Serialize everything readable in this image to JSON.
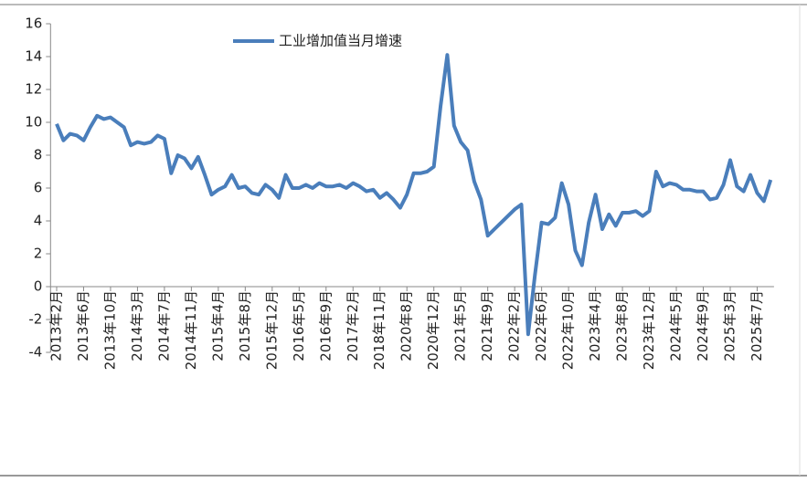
{
  "chart_data": {
    "type": "line",
    "categories": [
      "2013年2月",
      null,
      null,
      null,
      "2013年6月",
      null,
      null,
      null,
      "2013年10月",
      null,
      null,
      null,
      "2014年3月",
      null,
      null,
      null,
      "2014年7月",
      null,
      null,
      null,
      "2014年11月",
      null,
      null,
      null,
      "2015年4月",
      null,
      null,
      null,
      "2015年8月",
      null,
      null,
      null,
      "2015年12月",
      null,
      null,
      null,
      "2016年5月",
      null,
      null,
      null,
      "2016年9月",
      null,
      null,
      null,
      "2017年2月",
      null,
      null,
      null,
      "2018年11月",
      null,
      null,
      null,
      "2020年8月",
      null,
      null,
      null,
      "2020年12月",
      null,
      null,
      null,
      "2021年5月",
      null,
      null,
      null,
      "2021年9月",
      null,
      null,
      null,
      "2022年2月",
      null,
      null,
      null,
      "2022年6月",
      null,
      null,
      null,
      "2022年10月",
      null,
      null,
      null,
      "2023年4月",
      null,
      null,
      null,
      "2023年8月",
      null,
      null,
      null,
      "2023年12月",
      null,
      null,
      null,
      "2024年5月",
      null,
      null,
      null,
      "2024年9月",
      null,
      null,
      null,
      "2025年3月",
      null,
      null,
      null,
      "2025年7月",
      null,
      null
    ],
    "series": [
      {
        "name": "工业增加值当月增速",
        "color": "#4a7ebb",
        "values": [
          9.9,
          8.9,
          9.3,
          9.2,
          8.9,
          9.7,
          10.4,
          10.2,
          10.3,
          10.0,
          9.7,
          8.6,
          8.8,
          8.7,
          8.8,
          9.2,
          9.0,
          6.9,
          8.0,
          7.8,
          7.2,
          7.9,
          6.8,
          5.6,
          5.9,
          6.1,
          6.8,
          6.0,
          6.1,
          5.7,
          5.6,
          6.2,
          5.9,
          5.4,
          6.8,
          6.0,
          6.0,
          6.2,
          6.0,
          6.3,
          6.1,
          6.1,
          6.2,
          6.0,
          6.3,
          6.1,
          5.8,
          5.9,
          5.4,
          5.7,
          5.3,
          4.8,
          5.6,
          6.9,
          6.9,
          7.0,
          7.3,
          11.0,
          14.1,
          9.8,
          8.8,
          8.3,
          6.4,
          5.3,
          3.1,
          3.5,
          3.9,
          4.3,
          4.7,
          5.0,
          -2.9,
          0.7,
          3.9,
          3.8,
          4.2,
          6.3,
          5.0,
          2.2,
          1.3,
          3.9,
          5.6,
          3.5,
          4.4,
          3.7,
          4.5,
          4.5,
          4.6,
          4.3,
          4.6,
          7.0,
          6.1,
          6.3,
          6.2,
          5.9,
          5.9,
          5.8,
          5.8,
          5.3,
          5.4,
          6.2,
          7.7,
          6.1,
          5.8,
          6.8,
          5.7,
          5.2,
          6.5
        ]
      }
    ],
    "ylim": [
      -4,
      16
    ],
    "yticks": [
      -4,
      -2,
      0,
      2,
      4,
      6,
      8,
      10,
      12,
      14,
      16
    ]
  }
}
